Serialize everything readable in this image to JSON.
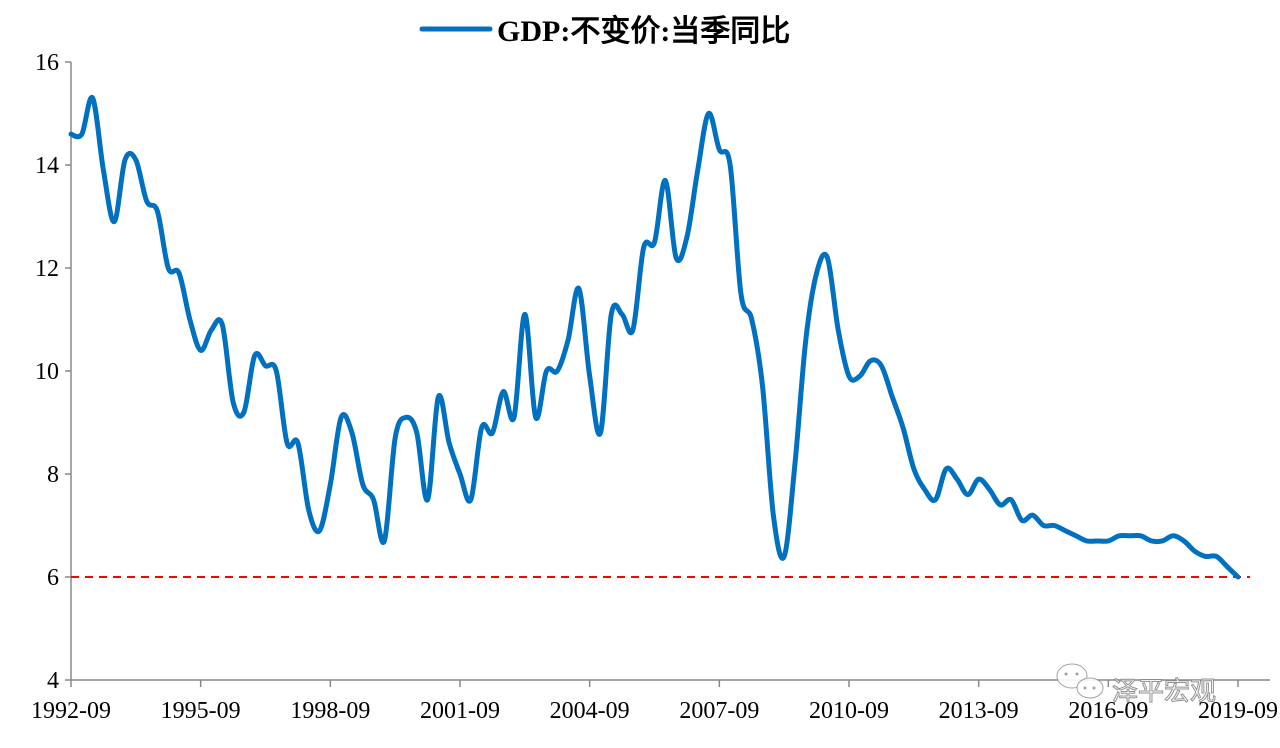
{
  "chart_data": {
    "type": "line",
    "title": "",
    "xlabel": "",
    "ylabel": "",
    "ylim": [
      4,
      16
    ],
    "yticks": [
      "4",
      "6",
      "8",
      "10",
      "12",
      "14",
      "16"
    ],
    "xticks": [
      "1992-09",
      "1995-09",
      "1998-09",
      "2001-09",
      "2004-09",
      "2007-09",
      "2010-09",
      "2013-09",
      "2016-09",
      "2019-09"
    ],
    "x_start": "1992-09",
    "x_end": "2019-09",
    "frequency": "quarterly",
    "grid": false,
    "legend_placement": "top-center",
    "series": [
      {
        "name": "GDP:不变价:当季同比",
        "color": "#0070C0",
        "values": [
          14.6,
          14.6,
          15.3,
          13.9,
          12.9,
          14.1,
          14.1,
          13.3,
          13.1,
          12.0,
          11.9,
          11.0,
          10.4,
          10.8,
          10.9,
          9.4,
          9.2,
          10.3,
          10.1,
          10.0,
          8.6,
          8.6,
          7.3,
          6.9,
          7.8,
          9.1,
          8.8,
          7.8,
          7.5,
          6.7,
          8.7,
          9.1,
          8.8,
          7.5,
          9.5,
          8.6,
          8.0,
          7.5,
          8.9,
          8.8,
          9.6,
          9.1,
          11.1,
          9.1,
          10.0,
          10.0,
          10.6,
          11.6,
          9.9,
          8.8,
          11.1,
          11.1,
          10.8,
          12.4,
          12.5,
          13.7,
          12.2,
          12.6,
          13.9,
          15.0,
          14.3,
          14.0,
          11.5,
          11.0,
          9.7,
          7.2,
          6.4,
          8.2,
          10.6,
          11.9,
          12.2,
          10.8,
          9.9,
          9.9,
          10.2,
          10.1,
          9.5,
          8.9,
          8.1,
          7.7,
          7.5,
          8.1,
          7.9,
          7.6,
          7.9,
          7.7,
          7.4,
          7.5,
          7.1,
          7.2,
          7.0,
          7.0,
          6.9,
          6.8,
          6.7,
          6.7,
          6.7,
          6.8,
          6.8,
          6.8,
          6.7,
          6.7,
          6.8,
          6.7,
          6.5,
          6.4,
          6.4,
          6.2,
          6.0
        ]
      }
    ],
    "reference_line": {
      "value": 6,
      "color": "#FF0000",
      "style": "dashed"
    }
  },
  "watermark": "泽平宏观"
}
